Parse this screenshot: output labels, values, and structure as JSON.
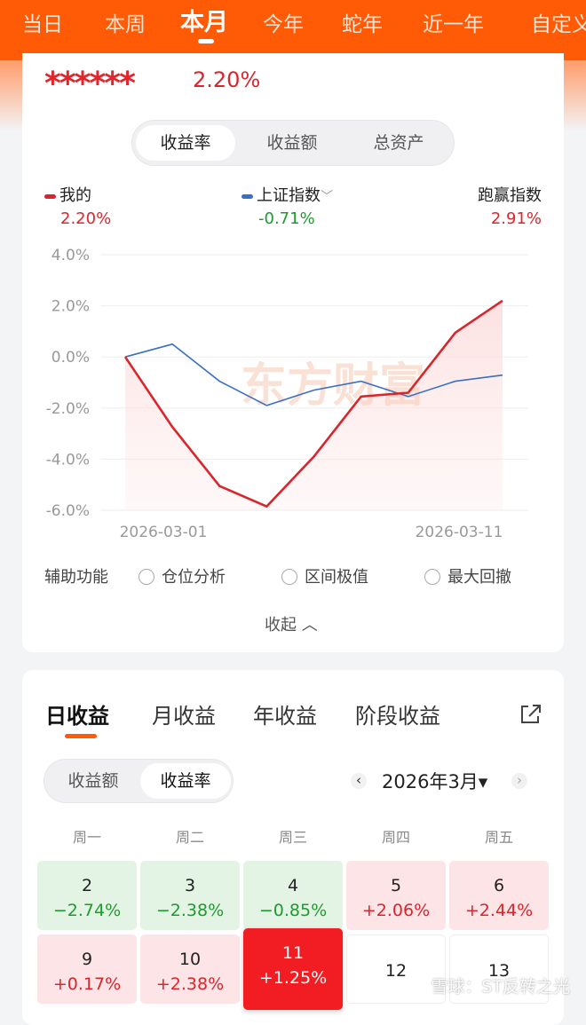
{
  "period_tabs": [
    "当日",
    "本周",
    "本月",
    "今年",
    "蛇年",
    "近一年",
    "自定义"
  ],
  "active_period": "本月",
  "summary": {
    "masked_amount": "******",
    "return": "2.20%"
  },
  "chart_tabs": [
    "收益率",
    "收益额",
    "总资产"
  ],
  "legend": {
    "mine_label": "我的",
    "mine_value": "2.20%",
    "index_label": "上证指数",
    "index_value": "-0.71%",
    "beat_label": "跑赢指数",
    "beat_value": "2.91%"
  },
  "colors": {
    "mine": "#d9262c",
    "index": "#3a6fc4",
    "up": "#d9262c",
    "down": "#1f9a2e",
    "brand": "#ff5a05"
  },
  "watermark_logo": "东方财富",
  "chart_data": {
    "type": "line",
    "x": [
      "2026-03-01",
      "2026-03-02",
      "2026-03-03",
      "2026-03-04",
      "2026-03-05",
      "2026-03-06",
      "2026-03-09",
      "2026-03-10",
      "2026-03-11"
    ],
    "xtick_labels": [
      "2026-03-01",
      "2026-03-11"
    ],
    "yticks": [
      "4.0%",
      "2.0%",
      "0.0%",
      "-2.0%",
      "-4.0%",
      "-6.0%"
    ],
    "ylim": [
      -6,
      4
    ],
    "grid": true,
    "series": [
      {
        "name": "我的",
        "values": [
          0,
          -2.74,
          -5.05,
          -5.85,
          -3.9,
          -1.55,
          -1.4,
          0.95,
          2.2
        ]
      },
      {
        "name": "上证指数",
        "values": [
          0,
          0.5,
          -0.95,
          -1.9,
          -1.3,
          -0.95,
          -1.55,
          -0.95,
          -0.71
        ]
      }
    ]
  },
  "aux": {
    "label": "辅助功能",
    "options": [
      "仓位分析",
      "区间极值",
      "最大回撤"
    ],
    "collapse": "收起 ︿"
  },
  "detail_tabs": [
    "日收益",
    "月收益",
    "年收益",
    "阶段收益"
  ],
  "detail_seg": [
    "收益额",
    "收益率"
  ],
  "month": {
    "label": "2026年3月▾",
    "prev": "‹",
    "next": "›"
  },
  "weekdays": [
    "周一",
    "周二",
    "周三",
    "周四",
    "周五"
  ],
  "days": [
    {
      "day": "2",
      "value": "−2.74%",
      "tone": "neg"
    },
    {
      "day": "3",
      "value": "−2.38%",
      "tone": "neg"
    },
    {
      "day": "4",
      "value": "−0.85%",
      "tone": "neg"
    },
    {
      "day": "5",
      "value": "+2.06%",
      "tone": "pos"
    },
    {
      "day": "6",
      "value": "+2.44%",
      "tone": "pos"
    },
    {
      "day": "9",
      "value": "+0.17%",
      "tone": "pos"
    },
    {
      "day": "10",
      "value": "+2.38%",
      "tone": "pos"
    },
    {
      "day": "11",
      "value": "+1.25%",
      "tone": "today"
    },
    {
      "day": "12",
      "value": "",
      "tone": "plain"
    },
    {
      "day": "13",
      "value": "",
      "tone": "plain"
    }
  ],
  "footer_watermark": "雪球：ST反转之光"
}
